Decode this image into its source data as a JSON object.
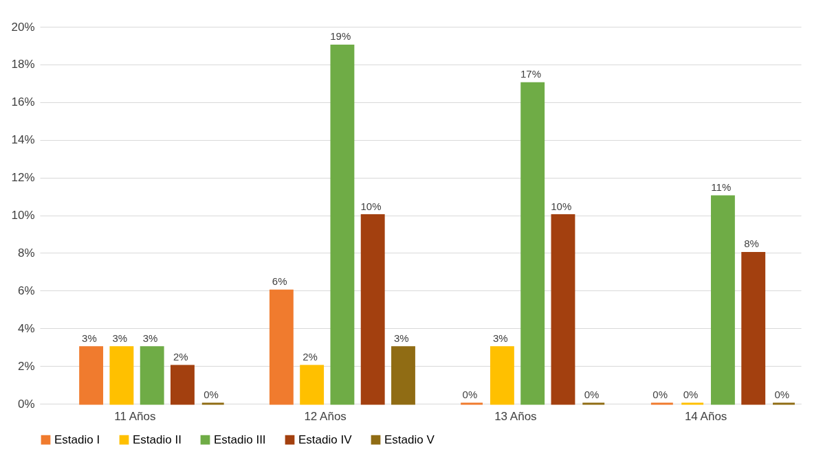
{
  "chart_data": {
    "type": "bar",
    "categories": [
      "11 Años",
      "12 Años",
      "13 Años",
      "14 Años"
    ],
    "series": [
      {
        "name": "Estadio I",
        "color": "#f07b2e",
        "values": [
          3,
          6,
          0,
          0
        ],
        "value_labels": [
          "3%",
          "6%",
          "0%",
          "0%"
        ]
      },
      {
        "name": "Estadio II",
        "color": "#ffc000",
        "values": [
          3,
          2,
          3,
          0
        ],
        "value_labels": [
          "3%",
          "2%",
          "3%",
          "0%"
        ]
      },
      {
        "name": "Estadio III",
        "color": "#6fac46",
        "values": [
          3,
          19,
          17,
          11
        ],
        "value_labels": [
          "3%",
          "19%",
          "17%",
          "11%"
        ]
      },
      {
        "name": "Estadio IV",
        "color": "#a3400f",
        "values": [
          2,
          10,
          10,
          8
        ],
        "value_labels": [
          "2%",
          "10%",
          "10%",
          "8%"
        ]
      },
      {
        "name": "Estadio V",
        "color": "#906c14",
        "values": [
          0,
          3,
          0,
          0
        ],
        "value_labels": [
          "0%",
          "3%",
          "0%",
          "0%"
        ]
      }
    ],
    "ylim": [
      0,
      20
    ],
    "yticks": [
      {
        "value": 0,
        "label": "0%"
      },
      {
        "value": 2,
        "label": "2%"
      },
      {
        "value": 4,
        "label": "4%"
      },
      {
        "value": 6,
        "label": "6%"
      },
      {
        "value": 8,
        "label": "8%"
      },
      {
        "value": 10,
        "label": "10%"
      },
      {
        "value": 12,
        "label": "12%"
      },
      {
        "value": 14,
        "label": "14%"
      },
      {
        "value": 16,
        "label": "16%"
      },
      {
        "value": 18,
        "label": "18%"
      },
      {
        "value": 20,
        "label": "20%"
      }
    ],
    "grid": "y",
    "legend": "bottom"
  }
}
